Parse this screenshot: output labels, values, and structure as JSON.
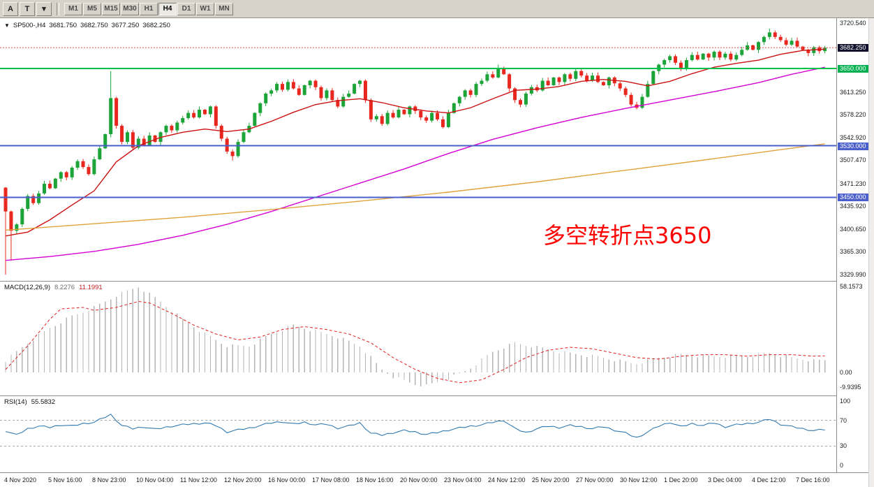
{
  "toolbar": {
    "tool_buttons": [
      {
        "name": "cursor-tool",
        "label": "A"
      },
      {
        "name": "text-tool",
        "label": "T"
      },
      {
        "name": "objects-dropdown",
        "label": "▾"
      }
    ],
    "timeframes": [
      "M1",
      "M5",
      "M15",
      "M30",
      "H1",
      "H4",
      "D1",
      "W1",
      "MN"
    ],
    "active_timeframe": "H4"
  },
  "chart": {
    "header": {
      "expander": "▼",
      "symbol": "SP500-,H4",
      "open": "3681.750",
      "high": "3682.750",
      "low": "3677.250",
      "close": "3682.250"
    }
  },
  "annotation": {
    "text": "多空转折点3650",
    "color": "#ff0000"
  },
  "macd": {
    "label": "MACD(12,26,9)",
    "main_value": "8.2276",
    "signal_value": "11.1991",
    "axis_ticks": [
      {
        "label": "58.1573",
        "v": 58.1573
      },
      {
        "label": "0.00",
        "v": 0
      },
      {
        "label": "-9.9395",
        "v": -9.9395
      }
    ]
  },
  "rsi": {
    "label": "RSI(14)",
    "value": "55.5832",
    "axis_ticks": [
      {
        "label": "100",
        "v": 100
      },
      {
        "label": "70",
        "v": 70
      },
      {
        "label": "30",
        "v": 30
      },
      {
        "label": "0",
        "v": 0
      }
    ]
  },
  "price_axis": {
    "ticks": [
      {
        "label": "3720.540",
        "price": 3720.54,
        "style": "plain"
      },
      {
        "label": "3682.250",
        "price": 3682.25,
        "style": "current"
      },
      {
        "label": "3650.000",
        "price": 3650.0,
        "style": "green"
      },
      {
        "label": "3613.250",
        "price": 3613.25,
        "style": "plain"
      },
      {
        "label": "3578.220",
        "price": 3578.22,
        "style": "plain"
      },
      {
        "label": "3542.920",
        "price": 3542.92,
        "style": "plain"
      },
      {
        "label": "3530.000",
        "price": 3530.0,
        "style": "blue"
      },
      {
        "label": "3507.470",
        "price": 3507.47,
        "style": "plain"
      },
      {
        "label": "3471.230",
        "price": 3471.23,
        "style": "plain"
      },
      {
        "label": "3450.000",
        "price": 3450.0,
        "style": "blue"
      },
      {
        "label": "3435.920",
        "price": 3435.92,
        "style": "plain"
      },
      {
        "label": "3400.650",
        "price": 3400.65,
        "style": "plain"
      },
      {
        "label": "3365.300",
        "price": 3365.3,
        "style": "plain"
      },
      {
        "label": "3329.990",
        "price": 3329.99,
        "style": "plain"
      }
    ]
  },
  "chart_data": {
    "type": "candlestick",
    "symbol": "SP500-",
    "timeframe": "H4",
    "title": "SP500-,H4",
    "ohlc_display": {
      "open": 3681.75,
      "high": 3682.75,
      "low": 3677.25,
      "close": 3682.25
    },
    "price_range": [
      3329.99,
      3720.54
    ],
    "current_price": 3682.25,
    "colors": {
      "bull": "#1ca438",
      "bear": "#e8281e",
      "ma_fast": "#cc1111",
      "ma_mid": "#d400d4",
      "ma_slow": "#e0a23c",
      "hist": "#b5b5b5",
      "signal": "#e02020",
      "rsi": "#337ab0",
      "level_green": "#00c24a",
      "level_blue": "#4a5fcb"
    },
    "first_open": 3465,
    "closes": [
      3428,
      3398,
      3408,
      3432,
      3452,
      3441,
      3456,
      3471,
      3464,
      3479,
      3489,
      3481,
      3496,
      3506,
      3497,
      3486,
      3509,
      3526,
      3548,
      3604,
      3561,
      3536,
      3551,
      3527,
      3541,
      3531,
      3546,
      3536,
      3551,
      3561,
      3554,
      3566,
      3573,
      3581,
      3574,
      3586,
      3579,
      3591,
      3561,
      3541,
      3521,
      3514,
      3536,
      3551,
      3561,
      3581,
      3596,
      3611,
      3616,
      3626,
      3617,
      3629,
      3619,
      3609,
      3624,
      3631,
      3621,
      3604,
      3616,
      3601,
      3591,
      3606,
      3611,
      3626,
      3631,
      3601,
      3571,
      3576,
      3564,
      3581,
      3574,
      3586,
      3579,
      3591,
      3584,
      3574,
      3569,
      3581,
      3571,
      3559,
      3581,
      3596,
      3606,
      3616,
      3609,
      3626,
      3631,
      3641,
      3636,
      3649,
      3641,
      3619,
      3601,
      3594,
      3611,
      3621,
      3616,
      3631,
      3624,
      3636,
      3629,
      3641,
      3634,
      3646,
      3639,
      3631,
      3639,
      3629,
      3624,
      3636,
      3627,
      3619,
      3609,
      3594,
      3589,
      3606,
      3626,
      3646,
      3656,
      3663,
      3669,
      3659,
      3649,
      3663,
      3671,
      3664,
      3673,
      3667,
      3676,
      3667,
      3673,
      3664,
      3671,
      3679,
      3686,
      3679,
      3691,
      3699,
      3706,
      3699,
      3694,
      3687,
      3693,
      3684,
      3679,
      3674,
      3683,
      3677,
      3682.25
    ],
    "wick_overrides": {
      "0": {
        "open": 3465,
        "low": 3330
      },
      "1": {
        "low": 3352
      },
      "19": {
        "high": 3646
      },
      "41": {
        "low": 3507
      },
      "89": {
        "high": 3656
      },
      "90": {
        "high": 3653
      },
      "138": {
        "high": 3712
      }
    },
    "h_levels": [
      {
        "name": "hline-3650",
        "price": 3650,
        "color": "#00c24a",
        "width": 2
      },
      {
        "name": "hline-3530",
        "price": 3530,
        "color": "#4a5fcb",
        "width": 2
      },
      {
        "name": "hline-3450",
        "price": 3450,
        "color": "#4a5fcb",
        "width": 2
      }
    ],
    "ma_lines": [
      {
        "name": "ma-fast-red",
        "color": "#cc1111",
        "points": [
          [
            0,
            3390
          ],
          [
            4,
            3396
          ],
          [
            8,
            3415
          ],
          [
            12,
            3438
          ],
          [
            16,
            3460
          ],
          [
            20,
            3505
          ],
          [
            24,
            3530
          ],
          [
            28,
            3543
          ],
          [
            32,
            3551
          ],
          [
            36,
            3556
          ],
          [
            40,
            3552
          ],
          [
            44,
            3556
          ],
          [
            48,
            3568
          ],
          [
            52,
            3582
          ],
          [
            56,
            3594
          ],
          [
            60,
            3600
          ],
          [
            64,
            3603
          ],
          [
            68,
            3597
          ],
          [
            72,
            3589
          ],
          [
            76,
            3584
          ],
          [
            80,
            3581
          ],
          [
            84,
            3589
          ],
          [
            88,
            3603
          ],
          [
            92,
            3616
          ],
          [
            96,
            3618
          ],
          [
            100,
            3622
          ],
          [
            104,
            3630
          ],
          [
            108,
            3633
          ],
          [
            112,
            3630
          ],
          [
            116,
            3623
          ],
          [
            120,
            3630
          ],
          [
            124,
            3642
          ],
          [
            128,
            3652
          ],
          [
            132,
            3658
          ],
          [
            136,
            3663
          ],
          [
            140,
            3672
          ],
          [
            144,
            3678
          ],
          [
            148,
            3680
          ]
        ]
      },
      {
        "name": "ma-mid-magenta",
        "color": "#d400d4",
        "points": [
          [
            0,
            3352
          ],
          [
            8,
            3358
          ],
          [
            16,
            3366
          ],
          [
            24,
            3377
          ],
          [
            32,
            3391
          ],
          [
            40,
            3408
          ],
          [
            48,
            3428
          ],
          [
            56,
            3450
          ],
          [
            64,
            3472
          ],
          [
            72,
            3494
          ],
          [
            80,
            3518
          ],
          [
            88,
            3540
          ],
          [
            96,
            3558
          ],
          [
            104,
            3574
          ],
          [
            112,
            3588
          ],
          [
            120,
            3601
          ],
          [
            128,
            3614
          ],
          [
            136,
            3628
          ],
          [
            142,
            3641
          ],
          [
            148,
            3652
          ]
        ]
      },
      {
        "name": "ma-slow-orange",
        "color": "#e0a23c",
        "points": [
          [
            0,
            3399
          ],
          [
            16,
            3409
          ],
          [
            32,
            3419
          ],
          [
            48,
            3431
          ],
          [
            64,
            3444
          ],
          [
            80,
            3458
          ],
          [
            96,
            3474
          ],
          [
            112,
            3492
          ],
          [
            128,
            3510
          ],
          [
            140,
            3524
          ],
          [
            148,
            3533
          ]
        ]
      }
    ],
    "macd": {
      "range": [
        -9.9395,
        58.1573
      ],
      "current_main": 8.2276,
      "current_signal": 11.1991,
      "hist_anchors": [
        [
          0,
          8
        ],
        [
          4,
          20
        ],
        [
          8,
          30
        ],
        [
          12,
          38
        ],
        [
          16,
          44
        ],
        [
          20,
          52
        ],
        [
          24,
          58
        ],
        [
          28,
          48
        ],
        [
          32,
          36
        ],
        [
          36,
          26
        ],
        [
          40,
          18
        ],
        [
          44,
          18
        ],
        [
          48,
          26
        ],
        [
          52,
          32
        ],
        [
          56,
          28
        ],
        [
          60,
          24
        ],
        [
          64,
          18
        ],
        [
          66,
          10
        ],
        [
          68,
          2
        ],
        [
          70,
          -3
        ],
        [
          74,
          -8
        ],
        [
          76,
          -9
        ],
        [
          80,
          -4
        ],
        [
          82,
          -1
        ],
        [
          84,
          3
        ],
        [
          88,
          14
        ],
        [
          92,
          20
        ],
        [
          96,
          17
        ],
        [
          100,
          14
        ],
        [
          104,
          12
        ],
        [
          108,
          10
        ],
        [
          112,
          7
        ],
        [
          114,
          6
        ],
        [
          118,
          10
        ],
        [
          122,
          12
        ],
        [
          126,
          11
        ],
        [
          130,
          11
        ],
        [
          134,
          11
        ],
        [
          138,
          13
        ],
        [
          142,
          10
        ],
        [
          146,
          8
        ],
        [
          148,
          8.2
        ]
      ],
      "signal_anchors": [
        [
          0,
          2
        ],
        [
          4,
          18
        ],
        [
          8,
          36
        ],
        [
          10,
          43
        ],
        [
          14,
          44
        ],
        [
          16,
          42
        ],
        [
          20,
          44
        ],
        [
          24,
          48
        ],
        [
          26,
          47
        ],
        [
          30,
          40
        ],
        [
          34,
          32
        ],
        [
          38,
          26
        ],
        [
          42,
          22
        ],
        [
          46,
          24
        ],
        [
          50,
          29
        ],
        [
          54,
          31
        ],
        [
          58,
          29
        ],
        [
          62,
          26
        ],
        [
          66,
          20
        ],
        [
          70,
          10
        ],
        [
          74,
          2
        ],
        [
          78,
          -4
        ],
        [
          82,
          -7
        ],
        [
          86,
          -5
        ],
        [
          90,
          2
        ],
        [
          94,
          10
        ],
        [
          98,
          15
        ],
        [
          102,
          17
        ],
        [
          106,
          16
        ],
        [
          110,
          13
        ],
        [
          114,
          10
        ],
        [
          118,
          9
        ],
        [
          122,
          11
        ],
        [
          126,
          12
        ],
        [
          130,
          12
        ],
        [
          134,
          11
        ],
        [
          138,
          12
        ],
        [
          142,
          12
        ],
        [
          146,
          11
        ],
        [
          148,
          11.2
        ]
      ]
    },
    "rsi": {
      "range": [
        0,
        100
      ],
      "levels": [
        70,
        30
      ],
      "current": 55.5832,
      "anchors": [
        [
          0,
          54
        ],
        [
          2,
          47
        ],
        [
          4,
          57
        ],
        [
          6,
          61
        ],
        [
          8,
          59
        ],
        [
          10,
          63
        ],
        [
          12,
          61
        ],
        [
          14,
          65
        ],
        [
          16,
          67
        ],
        [
          19,
          79
        ],
        [
          21,
          62
        ],
        [
          23,
          57
        ],
        [
          25,
          60
        ],
        [
          27,
          56
        ],
        [
          30,
          61
        ],
        [
          33,
          64
        ],
        [
          36,
          66
        ],
        [
          38,
          62
        ],
        [
          40,
          52
        ],
        [
          42,
          55
        ],
        [
          44,
          58
        ],
        [
          46,
          62
        ],
        [
          48,
          66
        ],
        [
          50,
          68
        ],
        [
          52,
          64
        ],
        [
          54,
          67
        ],
        [
          56,
          63
        ],
        [
          58,
          64
        ],
        [
          60,
          58
        ],
        [
          62,
          61
        ],
        [
          64,
          66
        ],
        [
          66,
          50
        ],
        [
          68,
          47
        ],
        [
          70,
          51
        ],
        [
          72,
          54
        ],
        [
          74,
          52
        ],
        [
          76,
          48
        ],
        [
          78,
          51
        ],
        [
          80,
          55
        ],
        [
          82,
          58
        ],
        [
          84,
          61
        ],
        [
          86,
          63
        ],
        [
          88,
          67
        ],
        [
          90,
          70
        ],
        [
          92,
          57
        ],
        [
          94,
          51
        ],
        [
          96,
          57
        ],
        [
          98,
          61
        ],
        [
          100,
          59
        ],
        [
          102,
          62
        ],
        [
          104,
          60
        ],
        [
          106,
          57
        ],
        [
          108,
          60
        ],
        [
          110,
          55
        ],
        [
          112,
          50
        ],
        [
          114,
          43
        ],
        [
          116,
          52
        ],
        [
          118,
          61
        ],
        [
          120,
          67
        ],
        [
          122,
          60
        ],
        [
          124,
          65
        ],
        [
          126,
          62
        ],
        [
          128,
          66
        ],
        [
          130,
          60
        ],
        [
          132,
          63
        ],
        [
          134,
          65
        ],
        [
          136,
          67
        ],
        [
          138,
          72
        ],
        [
          140,
          64
        ],
        [
          142,
          60
        ],
        [
          144,
          57
        ],
        [
          146,
          54
        ],
        [
          148,
          55.6
        ]
      ]
    },
    "x_labels": [
      "4 Nov 2020",
      "5 Nov 16:00",
      "8 Nov 23:00",
      "10 Nov 04:00",
      "11 Nov 12:00",
      "12 Nov 20:00",
      "16 Nov 00:00",
      "17 Nov 08:00",
      "18 Nov 16:00",
      "20 Nov 00:00",
      "23 Nov 04:00",
      "24 Nov 12:00",
      "25 Nov 20:00",
      "27 Nov 00:00",
      "30 Nov 12:00",
      "1 Dec 20:00",
      "3 Dec 04:00",
      "4 Dec 12:00",
      "7 Dec 16:00"
    ]
  }
}
